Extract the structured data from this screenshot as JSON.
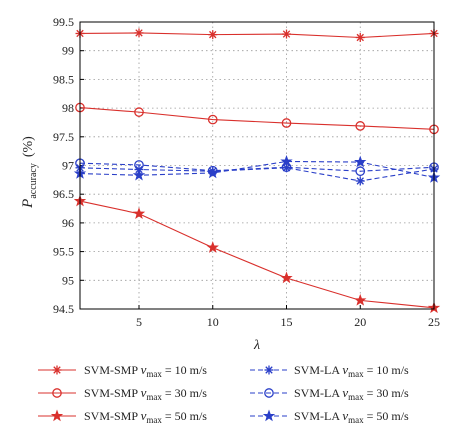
{
  "chart_data": {
    "type": "line",
    "xlabel": "λ",
    "ylabel": "P",
    "ylabel_subscript": "accuracy",
    "ylabel_unit": "(%)",
    "x": [
      1,
      5,
      10,
      15,
      20,
      25
    ],
    "xlim": [
      1,
      25
    ],
    "ylim": [
      94.5,
      99.5
    ],
    "xticks": [
      5,
      10,
      15,
      20,
      25
    ],
    "yticks": [
      94.5,
      95,
      95.5,
      96,
      96.5,
      97,
      97.5,
      98,
      98.5,
      99,
      99.5
    ],
    "grid": true,
    "legend_position": "bottom",
    "series": [
      {
        "name": "SVM-SMP v_max = 10 m/s",
        "method": "SVM-SMP",
        "speed": "= 10 m/s",
        "color": "#d9302c",
        "dash": "solid",
        "marker": "asterisk",
        "values": [
          99.3,
          99.31,
          99.28,
          99.29,
          99.23,
          99.3
        ]
      },
      {
        "name": "SVM-SMP v_max = 30 m/s",
        "method": "SVM-SMP",
        "speed": "= 30 m/s",
        "color": "#d9302c",
        "dash": "solid",
        "marker": "circle",
        "values": [
          98.01,
          97.93,
          97.8,
          97.74,
          97.69,
          97.63
        ]
      },
      {
        "name": "SVM-SMP v_max = 50 m/s",
        "method": "SVM-SMP",
        "speed": "= 50 m/s",
        "color": "#d9302c",
        "dash": "solid",
        "marker": "star",
        "values": [
          96.38,
          96.16,
          95.57,
          95.04,
          94.65,
          94.52
        ]
      },
      {
        "name": "SVM-LA v_max = 10 m/s",
        "method": "SVM-LA",
        "speed": "= 10 m/s",
        "color": "#2a3fc8",
        "dash": "dashed",
        "marker": "asterisk",
        "values": [
          96.96,
          96.93,
          96.9,
          96.96,
          96.73,
          96.94
        ]
      },
      {
        "name": "SVM-LA v_max = 30 m/s",
        "method": "SVM-LA",
        "speed": "= 30 m/s",
        "color": "#2a3fc8",
        "dash": "dashed",
        "marker": "circle",
        "values": [
          97.04,
          97.01,
          96.91,
          96.97,
          96.9,
          96.97
        ]
      },
      {
        "name": "SVM-LA v_max = 50 m/s",
        "method": "SVM-LA",
        "speed": "= 50 m/s",
        "color": "#2a3fc8",
        "dash": "dashed",
        "marker": "star",
        "values": [
          96.86,
          96.83,
          96.87,
          97.07,
          97.06,
          96.79
        ]
      }
    ],
    "legend_v": "v",
    "legend_v_subscript": "max"
  }
}
